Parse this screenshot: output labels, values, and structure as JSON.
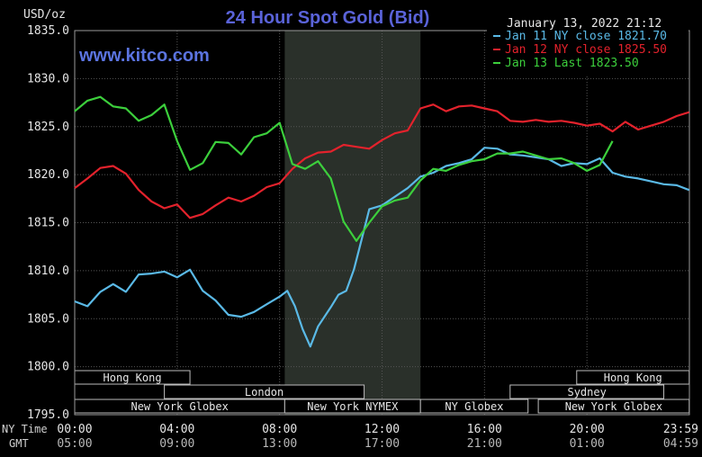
{
  "chart_data": {
    "type": "line",
    "title": "24 Hour Spot Gold (Bid)",
    "watermark": "www.kitco.com",
    "date_stamp": "January 13, 2022 21:12",
    "y_unit_label": "USD/oz",
    "ylim": [
      1795.0,
      1835.0
    ],
    "y_ticks": [
      "1835.0",
      "1830.0",
      "1825.0",
      "1820.0",
      "1815.0",
      "1810.0",
      "1805.0",
      "1800.0",
      "1795.0"
    ],
    "x_row_labels": [
      "NY Time",
      "GMT"
    ],
    "x_ticks_ny": [
      "00:00",
      "04:00",
      "08:00",
      "12:00",
      "16:00",
      "20:00",
      "23:59"
    ],
    "x_ticks_gmt": [
      "05:00",
      "09:00",
      "13:00",
      "17:00",
      "21:00",
      "01:00",
      "04:59"
    ],
    "grid": true,
    "legend_position": "top-right",
    "shaded_region_hours": [
      8.2,
      13.5
    ],
    "sessions": [
      {
        "label": "Hong Kong",
        "start": 0.0,
        "end": 4.5,
        "row": 0
      },
      {
        "label": "Hong Kong",
        "start": 19.6,
        "end": 23.99,
        "row": 0
      },
      {
        "label": "London",
        "start": 3.5,
        "end": 11.3,
        "row": 1
      },
      {
        "label": "Sydney",
        "start": 17.0,
        "end": 23.0,
        "row": 1
      },
      {
        "label": "New York Globex",
        "start": 0.0,
        "end": 8.2,
        "row": 2
      },
      {
        "label": "New York NYMEX",
        "start": 8.2,
        "end": 13.5,
        "row": 2
      },
      {
        "label": "NY Globex",
        "start": 13.5,
        "end": 17.7,
        "row": 2
      },
      {
        "label": "New York Globex",
        "start": 18.1,
        "end": 23.99,
        "row": 2
      }
    ],
    "series": [
      {
        "name": "Jan 11 NY close 1821.70",
        "color": "#5ab9e6",
        "x": [
          0.0,
          0.5,
          1.0,
          1.5,
          2.0,
          2.5,
          3.0,
          3.5,
          4.0,
          4.5,
          5.0,
          5.5,
          6.0,
          6.5,
          7.0,
          7.5,
          8.0,
          8.3,
          8.6,
          8.9,
          9.2,
          9.5,
          9.8,
          10.0,
          10.3,
          10.6,
          10.9,
          11.2,
          11.5,
          12.0,
          12.5,
          13.0,
          13.5,
          14.0,
          14.5,
          15.0,
          15.5,
          16.0,
          16.5,
          17.0,
          17.5,
          18.0,
          18.5,
          19.0,
          19.5,
          20.0,
          20.5,
          21.0,
          21.5,
          22.0,
          22.5,
          23.0,
          23.5,
          23.99
        ],
        "y": [
          1806.8,
          1806.3,
          1807.8,
          1808.6,
          1807.8,
          1809.6,
          1809.7,
          1809.9,
          1809.3,
          1810.1,
          1807.9,
          1806.9,
          1805.4,
          1805.2,
          1805.7,
          1806.5,
          1807.3,
          1807.9,
          1806.3,
          1803.9,
          1802.1,
          1804.2,
          1805.4,
          1806.2,
          1807.5,
          1807.9,
          1810.1,
          1813.2,
          1816.4,
          1816.8,
          1817.7,
          1818.6,
          1819.8,
          1820.2,
          1820.9,
          1821.2,
          1821.6,
          1822.8,
          1822.7,
          1822.1,
          1822.0,
          1821.8,
          1821.6,
          1820.9,
          1821.2,
          1821.1,
          1821.7,
          1820.2,
          1819.8,
          1819.6,
          1819.3,
          1819.0,
          1818.9,
          1818.4
        ]
      },
      {
        "name": "Jan 12 NY close 1825.50",
        "color": "#e3222c",
        "x": [
          0.0,
          0.5,
          1.0,
          1.5,
          2.0,
          2.5,
          3.0,
          3.5,
          4.0,
          4.5,
          5.0,
          5.5,
          6.0,
          6.5,
          7.0,
          7.5,
          8.0,
          8.5,
          9.0,
          9.5,
          10.0,
          10.5,
          11.0,
          11.5,
          12.0,
          12.5,
          13.0,
          13.5,
          14.0,
          14.5,
          15.0,
          15.5,
          16.0,
          16.5,
          17.0,
          17.5,
          18.0,
          18.5,
          19.0,
          19.5,
          20.0,
          20.5,
          21.0,
          21.5,
          22.0,
          22.5,
          23.0,
          23.5,
          23.99
        ],
        "y": [
          1818.6,
          1819.6,
          1820.7,
          1820.9,
          1820.1,
          1818.4,
          1817.2,
          1816.5,
          1816.9,
          1815.5,
          1815.9,
          1816.8,
          1817.6,
          1817.2,
          1817.8,
          1818.7,
          1819.1,
          1820.6,
          1821.7,
          1822.3,
          1822.4,
          1823.1,
          1822.9,
          1822.7,
          1823.6,
          1824.3,
          1824.6,
          1826.9,
          1827.3,
          1826.6,
          1827.1,
          1827.2,
          1826.9,
          1826.6,
          1825.6,
          1825.5,
          1825.7,
          1825.5,
          1825.6,
          1825.4,
          1825.1,
          1825.3,
          1824.5,
          1825.5,
          1824.7,
          1825.1,
          1825.5,
          1826.1,
          1826.5
        ]
      },
      {
        "name": "Jan 13 Last 1823.50",
        "color": "#3ccf3c",
        "x": [
          0.0,
          0.5,
          1.0,
          1.5,
          2.0,
          2.5,
          3.0,
          3.5,
          4.0,
          4.5,
          5.0,
          5.5,
          6.0,
          6.5,
          7.0,
          7.5,
          8.0,
          8.5,
          9.0,
          9.5,
          10.0,
          10.5,
          11.0,
          11.5,
          12.0,
          12.5,
          13.0,
          13.5,
          14.0,
          14.5,
          15.0,
          15.5,
          16.0,
          16.5,
          17.0,
          17.5,
          18.0,
          18.5,
          19.0,
          19.5,
          20.0,
          20.5,
          21.0
        ],
        "y": [
          1826.6,
          1827.7,
          1828.1,
          1827.1,
          1826.9,
          1825.6,
          1826.2,
          1827.3,
          1823.5,
          1820.5,
          1821.2,
          1823.4,
          1823.3,
          1822.1,
          1823.9,
          1824.3,
          1825.4,
          1821.1,
          1820.6,
          1821.4,
          1819.6,
          1815.1,
          1813.1,
          1815.0,
          1816.7,
          1817.3,
          1817.6,
          1819.4,
          1820.6,
          1820.4,
          1821.0,
          1821.4,
          1821.6,
          1822.2,
          1822.2,
          1822.4,
          1822.0,
          1821.6,
          1821.7,
          1821.2,
          1820.4,
          1821.0,
          1823.5
        ]
      }
    ]
  }
}
